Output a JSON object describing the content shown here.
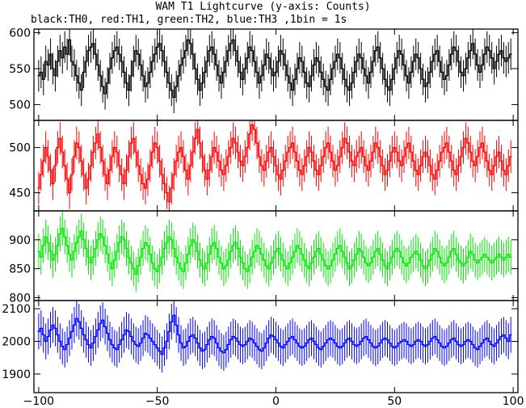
{
  "header": {
    "title": "WAM T1 Lightcurve (y-axis: Counts)",
    "subtitle": "black:TH0, red:TH1, green:TH2, blue:TH3 ,1bin = 1s"
  },
  "chart_data": {
    "type": "line",
    "x_range": [
      -102,
      102
    ],
    "x_ticks": [
      -100,
      -50,
      0,
      50,
      100
    ],
    "x_tick_labels": [
      "−100",
      "−50",
      "0",
      "50",
      "100"
    ],
    "n_points": 200,
    "x_start": -100,
    "x_step": 1,
    "panels": [
      {
        "name": "TH0",
        "color": "#000000",
        "ylim": [
          478,
          605
        ],
        "yticks": [
          500,
          550,
          600
        ],
        "error": 22,
        "values": [
          540,
          545,
          535,
          560,
          555,
          570,
          550,
          540,
          560,
          575,
          565,
          580,
          570,
          590,
          560,
          555,
          540,
          530,
          520,
          545,
          560,
          575,
          580,
          585,
          570,
          555,
          540,
          525,
          515,
          530,
          550,
          565,
          575,
          580,
          570,
          560,
          545,
          530,
          520,
          540,
          560,
          575,
          570,
          555,
          540,
          525,
          530,
          545,
          560,
          570,
          580,
          585,
          575,
          560,
          545,
          530,
          520,
          510,
          525,
          540,
          555,
          565,
          575,
          590,
          585,
          570,
          550,
          535,
          520,
          530,
          545,
          560,
          575,
          580,
          570,
          555,
          540,
          530,
          545,
          560,
          575,
          585,
          590,
          575,
          560,
          545,
          535,
          550,
          565,
          580,
          575,
          560,
          545,
          530,
          540,
          555,
          570,
          565,
          550,
          540,
          545,
          560,
          575,
          570,
          555,
          540,
          530,
          520,
          535,
          550,
          565,
          560,
          545,
          530,
          525,
          540,
          555,
          565,
          560,
          545,
          535,
          525,
          520,
          535,
          550,
          560,
          570,
          565,
          550,
          535,
          525,
          520,
          530,
          545,
          560,
          570,
          565,
          550,
          540,
          530,
          545,
          560,
          575,
          580,
          565,
          550,
          535,
          525,
          520,
          535,
          550,
          565,
          575,
          570,
          555,
          540,
          530,
          545,
          560,
          570,
          565,
          550,
          535,
          525,
          530,
          545,
          560,
          570,
          575,
          560,
          545,
          535,
          540,
          555,
          570,
          580,
          575,
          560,
          545,
          540,
          550,
          565,
          575,
          585,
          570,
          555,
          545,
          555,
          570,
          580,
          575,
          565,
          550,
          560,
          570,
          575,
          565,
          560,
          565,
          570
        ]
      },
      {
        "name": "TH1",
        "color": "#ff0000",
        "ylim": [
          430,
          530
        ],
        "yticks": [
          450,
          500
        ],
        "error": 18,
        "values": [
          455,
          470,
          485,
          500,
          490,
          475,
          460,
          480,
          500,
          510,
          495,
          480,
          465,
          450,
          470,
          490,
          505,
          500,
          485,
          470,
          455,
          465,
          480,
          495,
          505,
          515,
          500,
          485,
          470,
          460,
          475,
          490,
          500,
          495,
          480,
          470,
          460,
          475,
          490,
          505,
          510,
          495,
          480,
          470,
          460,
          455,
          465,
          480,
          495,
          505,
          500,
          485,
          470,
          460,
          450,
          440,
          455,
          470,
          485,
          495,
          500,
          490,
          475,
          465,
          480,
          495,
          510,
          520,
          505,
          490,
          475,
          465,
          475,
          490,
          500,
          495,
          485,
          475,
          470,
          480,
          490,
          500,
          510,
          505,
          495,
          485,
          480,
          490,
          500,
          515,
          525,
          520,
          505,
          490,
          480,
          475,
          485,
          495,
          500,
          490,
          480,
          470,
          465,
          475,
          485,
          495,
          500,
          505,
          495,
          485,
          475,
          470,
          480,
          490,
          500,
          495,
          485,
          475,
          470,
          480,
          490,
          500,
          505,
          495,
          485,
          475,
          480,
          490,
          500,
          510,
          505,
          495,
          485,
          480,
          490,
          495,
          500,
          490,
          480,
          475,
          485,
          495,
          505,
          500,
          490,
          480,
          470,
          475,
          485,
          495,
          500,
          495,
          485,
          480,
          490,
          500,
          505,
          495,
          485,
          475,
          470,
          480,
          490,
          495,
          490,
          480,
          470,
          465,
          475,
          485,
          495,
          500,
          505,
          495,
          485,
          475,
          470,
          480,
          490,
          500,
          510,
          505,
          495,
          485,
          480,
          490,
          500,
          505,
          495,
          485,
          475,
          470,
          480,
          490,
          495,
          485,
          475,
          470,
          480,
          490
        ]
      },
      {
        "name": "TH2",
        "color": "#00e600",
        "ylim": [
          795,
          950
        ],
        "yticks": [
          800,
          850,
          900
        ],
        "error": 30,
        "values": [
          880,
          870,
          890,
          905,
          895,
          880,
          865,
          875,
          890,
          910,
          920,
          905,
          890,
          875,
          865,
          880,
          895,
          905,
          915,
          900,
          885,
          870,
          860,
          870,
          885,
          900,
          910,
          905,
          890,
          875,
          860,
          850,
          865,
          880,
          895,
          905,
          900,
          885,
          870,
          860,
          850,
          840,
          855,
          870,
          885,
          895,
          890,
          875,
          860,
          850,
          845,
          855,
          870,
          885,
          895,
          905,
          900,
          885,
          870,
          860,
          850,
          845,
          860,
          875,
          890,
          900,
          895,
          880,
          865,
          855,
          850,
          860,
          875,
          890,
          895,
          885,
          870,
          860,
          850,
          855,
          865,
          880,
          890,
          895,
          885,
          870,
          860,
          850,
          845,
          855,
          870,
          880,
          890,
          885,
          875,
          865,
          855,
          850,
          860,
          870,
          880,
          885,
          875,
          865,
          855,
          850,
          860,
          870,
          880,
          890,
          885,
          875,
          865,
          855,
          850,
          860,
          870,
          880,
          885,
          875,
          865,
          855,
          850,
          855,
          865,
          875,
          885,
          890,
          880,
          870,
          860,
          850,
          855,
          865,
          875,
          885,
          880,
          870,
          860,
          855,
          860,
          870,
          880,
          885,
          875,
          865,
          855,
          850,
          860,
          870,
          880,
          885,
          880,
          870,
          860,
          855,
          860,
          870,
          875,
          880,
          875,
          865,
          855,
          850,
          855,
          865,
          875,
          885,
          880,
          870,
          860,
          855,
          860,
          870,
          880,
          885,
          875,
          865,
          860,
          855,
          860,
          870,
          880,
          875,
          865,
          860,
          865,
          870,
          875,
          870,
          865,
          860,
          865,
          870,
          875,
          870,
          865,
          870,
          875,
          870
        ]
      },
      {
        "name": "TH3",
        "color": "#0000ff",
        "ylim": [
          1843,
          2125
        ],
        "yticks": [
          1900,
          2000,
          2100
        ],
        "error": 55,
        "values": [
          2030,
          2040,
          2020,
          2000,
          2015,
          2035,
          2050,
          2040,
          2020,
          2000,
          1985,
          1975,
          1990,
          2010,
          2030,
          2050,
          2070,
          2060,
          2040,
          2020,
          2005,
          1990,
          1980,
          1995,
          2015,
          2035,
          2055,
          2065,
          2045,
          2025,
          2005,
          1990,
          1980,
          1975,
          1990,
          2005,
          2020,
          2035,
          2030,
          2015,
          2000,
          1990,
          1985,
          1995,
          2010,
          2025,
          2020,
          2010,
          2000,
          1990,
          1980,
          1970,
          1960,
          1980,
          2000,
          2030,
          2060,
          2080,
          2050,
          2020,
          1995,
          1980,
          1985,
          2000,
          2015,
          2020,
          2010,
          1995,
          1980,
          1970,
          1975,
          1990,
          2005,
          2015,
          2010,
          1995,
          1980,
          1970,
          1965,
          1975,
          1990,
          2005,
          2015,
          2010,
          2000,
          1990,
          1985,
          1990,
          2000,
          2010,
          2005,
          1995,
          1985,
          1975,
          1970,
          1980,
          1995,
          2010,
          2020,
          2015,
          2005,
          1995,
          1985,
          1980,
          1990,
          2000,
          2010,
          2015,
          2005,
          1995,
          1985,
          1980,
          1985,
          1995,
          2005,
          2010,
          2000,
          1990,
          1980,
          1975,
          1985,
          1995,
          2005,
          2010,
          2005,
          1995,
          1985,
          1980,
          1985,
          1995,
          2005,
          2010,
          2000,
          1990,
          1985,
          1990,
          2000,
          2010,
          2015,
          2005,
          1995,
          1985,
          1980,
          1985,
          1995,
          2005,
          2010,
          2005,
          1995,
          1985,
          1980,
          1985,
          1995,
          2000,
          2005,
          2000,
          1990,
          1985,
          1990,
          2000,
          2005,
          2000,
          1990,
          1985,
          1990,
          2000,
          2010,
          2015,
          2005,
          1995,
          1985,
          1980,
          1985,
          1995,
          2005,
          2010,
          2000,
          1990,
          1985,
          1990,
          2000,
          2005,
          2000,
          1990,
          1980,
          1975,
          1985,
          1995,
          2005,
          2010,
          2000,
          1990,
          1985,
          1995,
          2005,
          2015,
          2020,
          2010,
          2000,
          2020
        ]
      }
    ]
  }
}
